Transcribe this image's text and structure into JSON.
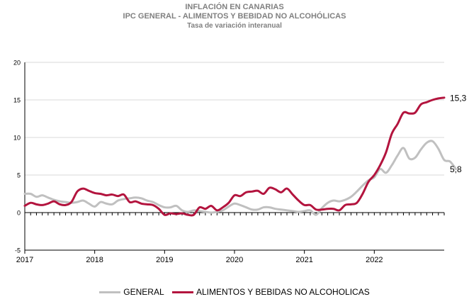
{
  "chart_data": {
    "type": "line",
    "title": "INFLACIÓN EN CANARIAS",
    "subtitle": "IPC GENERAL - ALIMENTOS Y BEBIDAD NO ALCOHÓLICAS",
    "subtitle2": "Tasa de variación interanual",
    "ylim": [
      -5,
      20
    ],
    "yticks": [
      "-5",
      "0",
      "5",
      "10",
      "15",
      "20"
    ],
    "xticks": [
      "2017",
      "2018",
      "2019",
      "2020",
      "2021",
      "2022"
    ],
    "x_start": 2017,
    "grid": true,
    "legend_position": "bottom",
    "series": [
      {
        "name": "GENERAL",
        "color": "#c0c0c0",
        "values": [
          2.5,
          2.5,
          2.1,
          2.3,
          2.0,
          1.7,
          1.5,
          1.4,
          1.3,
          1.4,
          1.6,
          1.2,
          0.8,
          1.4,
          1.2,
          1.1,
          1.6,
          1.8,
          1.9,
          2.0,
          1.9,
          1.6,
          1.4,
          1.0,
          0.7,
          0.7,
          0.9,
          0.3,
          0.1,
          0.3,
          0.2,
          0.1,
          0.0,
          0.1,
          0.3,
          0.8,
          1.2,
          1.0,
          0.7,
          0.4,
          0.4,
          0.7,
          0.7,
          0.5,
          0.4,
          0.3,
          0.2,
          0.1,
          0.2,
          0.3,
          -0.3,
          0.6,
          1.3,
          1.6,
          1.5,
          1.7,
          2.1,
          2.8,
          3.6,
          4.3,
          4.7,
          5.8,
          5.3,
          6.3,
          7.6,
          8.6,
          7.2,
          7.3,
          8.4,
          9.3,
          9.5,
          8.5,
          7.0,
          6.8,
          5.8
        ]
      },
      {
        "name": "ALIMENTOS Y BEBIDAS NO ALCOHOLICAS",
        "color": "#b3143e",
        "values": [
          0.9,
          1.3,
          1.1,
          1.0,
          1.2,
          1.5,
          1.1,
          1.0,
          1.4,
          2.8,
          3.2,
          2.9,
          2.6,
          2.5,
          2.3,
          2.4,
          2.2,
          2.4,
          1.4,
          1.5,
          1.2,
          1.1,
          1.0,
          0.5,
          -0.3,
          -0.1,
          -0.2,
          -0.1,
          -0.3,
          -0.3,
          0.7,
          0.5,
          0.9,
          0.3,
          0.7,
          1.3,
          2.3,
          2.2,
          2.7,
          2.8,
          2.9,
          2.5,
          3.3,
          3.1,
          2.7,
          3.2,
          2.4,
          1.6,
          1.0,
          1.0,
          0.4,
          0.4,
          0.5,
          0.5,
          0.3,
          1.0,
          1.1,
          1.3,
          2.5,
          4.1,
          5.0,
          6.3,
          8.0,
          10.5,
          11.8,
          13.3,
          13.2,
          13.3,
          14.4,
          14.7,
          15.0,
          15.2,
          15.3
        ]
      }
    ],
    "end_labels": [
      "5,8",
      "15,3"
    ]
  }
}
